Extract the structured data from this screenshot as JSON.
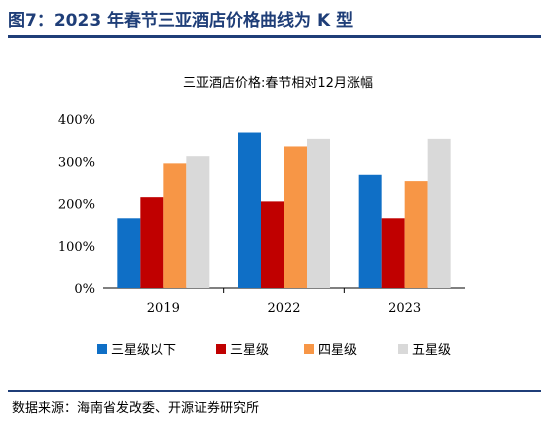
{
  "figure": {
    "title": "图7：2023 年春节三亚酒店价格曲线为 K 型",
    "source": "数据来源：海南省发改委、开源证券研究所"
  },
  "colors": {
    "accent": "#1f3e78",
    "series": [
      "#0f6fc6",
      "#c00000",
      "#f79646",
      "#d9d9d9"
    ]
  },
  "chart_data": {
    "type": "bar",
    "title": "三亚酒店价格:春节相对12月涨幅",
    "categories": [
      "2019",
      "2022",
      "2023"
    ],
    "series": [
      {
        "name": "三星级以下",
        "values": [
          165,
          368,
          268
        ]
      },
      {
        "name": "三星级",
        "values": [
          215,
          205,
          165
        ]
      },
      {
        "name": "四星级",
        "values": [
          295,
          335,
          253
        ]
      },
      {
        "name": "五星级",
        "values": [
          312,
          353,
          353
        ]
      }
    ],
    "ylim": [
      0,
      400
    ],
    "yticks": [
      "0%",
      "100%",
      "200%",
      "300%",
      "400%"
    ],
    "grid": false,
    "legend": "bottom"
  }
}
